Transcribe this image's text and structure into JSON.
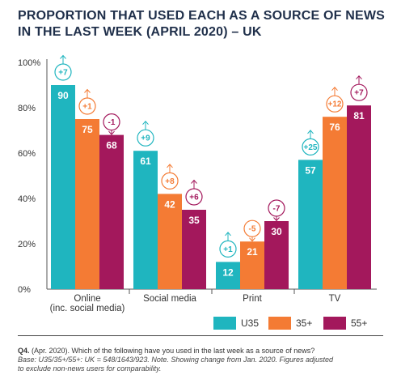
{
  "title_lines": [
    "PROPORTION THAT USED EACH AS A SOURCE OF NEWS",
    "IN THE LAST WEEK (APRIL 2020) – UK"
  ],
  "chart_data": {
    "type": "bar",
    "title": "PROPORTION THAT USED EACH AS A SOURCE OF NEWS IN THE LAST WEEK (APRIL 2020) – UK",
    "categories": [
      [
        "Online",
        "(inc. social media)"
      ],
      [
        "Social media"
      ],
      [
        "Print"
      ],
      [
        "TV"
      ]
    ],
    "series": [
      {
        "name": "U35",
        "color": "#1fb5bf",
        "values": [
          90,
          61,
          12,
          57
        ],
        "changes": [
          "+7",
          "+9",
          "+1",
          "+25"
        ],
        "direction": [
          "up",
          "up",
          "up",
          "up"
        ]
      },
      {
        "name": "35+",
        "color": "#f47b34",
        "values": [
          75,
          42,
          21,
          76
        ],
        "changes": [
          "+1",
          "+8",
          "-5",
          "+12"
        ],
        "direction": [
          "up",
          "up",
          "down",
          "up"
        ]
      },
      {
        "name": "55+",
        "color": "#a3185c",
        "values": [
          68,
          35,
          30,
          81
        ],
        "changes": [
          "-1",
          "+6",
          "-7",
          "+7"
        ],
        "direction": [
          "down",
          "up",
          "down",
          "up"
        ]
      }
    ],
    "y_ticks": [
      "0%",
      "20%",
      "40%",
      "60%",
      "80%",
      "100%"
    ],
    "ylim": [
      0,
      100
    ],
    "legend": "bottom-right",
    "grid": false
  },
  "footnote": {
    "q_label": "Q4.",
    "q_text": " (Apr. 2020). Which of the following have you used in the last week as a source of news?",
    "base_text": "Base: U35/35+/55+: UK = 548/1643/923. Note. Showing change from Jan. 2020. Figures adjusted",
    "base_text2": "to exclude non-news users for comparability."
  }
}
